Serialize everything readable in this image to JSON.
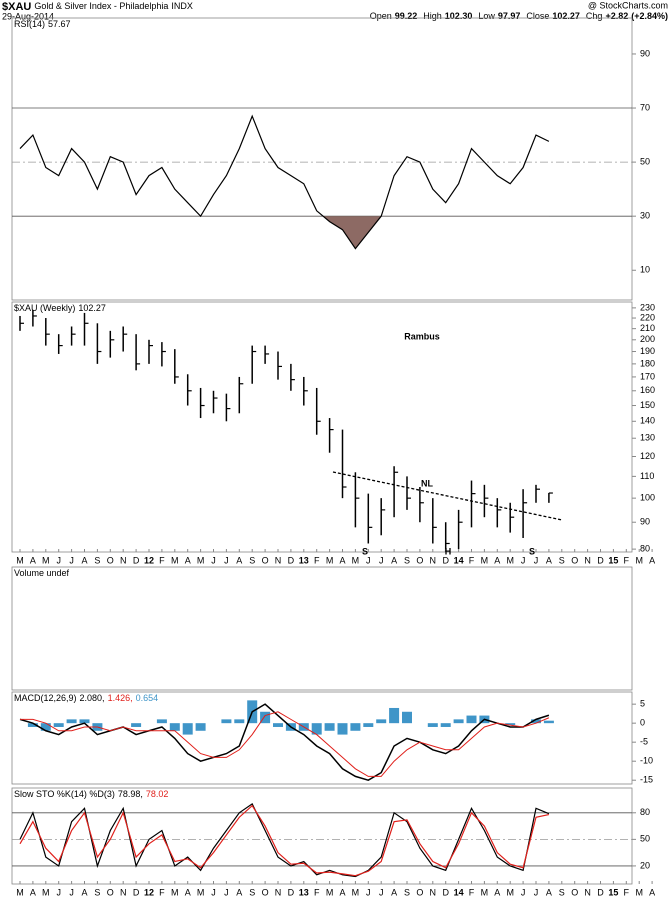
{
  "header": {
    "symbol": "$XAU",
    "name": "Gold & Silver Index - Philadelphia",
    "exchange": "INDX",
    "date": "29-Aug-2014",
    "brand": "@ StockCharts.com",
    "quote": [
      {
        "label": "Open",
        "value": 99.22
      },
      {
        "label": "High",
        "value": 102.3,
        "value_label": "102.30"
      },
      {
        "label": "Low",
        "value": 97.97
      },
      {
        "label": "Close",
        "value": 102.27
      },
      {
        "label": "Chg",
        "value": 2.82,
        "value_label": "+2.82"
      },
      {
        "label": "",
        "value": 2.84,
        "value_label": "(+2.84%)"
      }
    ]
  },
  "chart_data": [
    {
      "type": "line",
      "label": "RSI(14)",
      "last": [
        57.67
      ],
      "ylim": [
        -1,
        103.3
      ],
      "yticks": [
        10,
        30,
        50,
        70,
        90
      ],
      "reference_lines": [
        30,
        50,
        70
      ],
      "fill_below_color": "#8d6a64",
      "series": [
        {
          "color": "#000000",
          "values": [
            55,
            60,
            48,
            45,
            55,
            50,
            40,
            52,
            50,
            38,
            45,
            48,
            40,
            35,
            30,
            38,
            45,
            55,
            67,
            55,
            48,
            45,
            42,
            32,
            28,
            25,
            18,
            24,
            30,
            45,
            52,
            50,
            40,
            35,
            42,
            55,
            50,
            45,
            42,
            48,
            60,
            57.67,
            null,
            null,
            null,
            null,
            null,
            null,
            null,
            null
          ]
        }
      ]
    },
    {
      "type": "hlc",
      "label": "$XAU (Weekly)",
      "last": [
        102.27
      ],
      "log_scale": true,
      "ylim": [
        79,
        236
      ],
      "yticks": [
        80,
        90,
        100,
        110,
        120,
        130,
        140,
        150,
        160,
        170,
        180,
        190,
        200,
        210,
        220,
        230
      ],
      "color": "#000000",
      "annotations": [
        "Rambus",
        "NL",
        "S",
        "H",
        "S"
      ],
      "categories": [
        "M",
        "A",
        "M",
        "J",
        "J",
        "A",
        "S",
        "O",
        "N",
        "D",
        "12",
        "F",
        "M",
        "A",
        "M",
        "J",
        "J",
        "A",
        "S",
        "O",
        "N",
        "D",
        "13",
        "F",
        "M",
        "A",
        "M",
        "J",
        "J",
        "A",
        "S",
        "O",
        "N",
        "D",
        "14",
        "F",
        "M",
        "A",
        "M",
        "J",
        "J",
        "A",
        "S",
        "O",
        "N",
        "D",
        "15",
        "F",
        "M",
        "A"
      ],
      "high": [
        222,
        228,
        220,
        205,
        212,
        225,
        215,
        208,
        212,
        205,
        200,
        198,
        192,
        172,
        162,
        160,
        158,
        170,
        195,
        195,
        190,
        180,
        170,
        162,
        142,
        135,
        112,
        102,
        100,
        115,
        110,
        105,
        100,
        90,
        95,
        108,
        106,
        100,
        98,
        104,
        106,
        102.3,
        null,
        null,
        null,
        null,
        null,
        null,
        null,
        null
      ],
      "low": [
        208,
        212,
        195,
        188,
        195,
        195,
        180,
        185,
        190,
        175,
        180,
        178,
        165,
        150,
        142,
        145,
        140,
        145,
        165,
        180,
        168,
        160,
        150,
        132,
        122,
        100,
        88,
        82,
        85,
        92,
        95,
        90,
        82,
        79,
        80,
        88,
        92,
        88,
        86,
        84,
        98,
        97.97,
        null,
        null,
        null,
        null,
        null,
        null,
        null,
        null
      ],
      "close": [
        215,
        222,
        205,
        195,
        205,
        215,
        190,
        200,
        205,
        180,
        195,
        190,
        170,
        160,
        150,
        155,
        148,
        165,
        190,
        188,
        178,
        168,
        160,
        140,
        135,
        105,
        100,
        88,
        95,
        112,
        100,
        98,
        88,
        82,
        90,
        102,
        100,
        95,
        92,
        98,
        104,
        102.27,
        null,
        null,
        null,
        null,
        null,
        null,
        null,
        null
      ]
    },
    {
      "type": "bar",
      "label": "Volume undef"
    },
    {
      "type": "macd",
      "label": "MACD(12,26,9)",
      "last": [
        {
          "value": 2.08,
          "label": "2.080,"
        },
        {
          "value": 1.426,
          "label": "1.426,"
        },
        0.654
      ],
      "ylim": [
        -16,
        8.2
      ],
      "yticks": [
        5,
        0,
        -5,
        -10,
        -15
      ],
      "histogram": {
        "color": "#3f95c8",
        "values": [
          0,
          -1,
          -2,
          -1,
          1,
          1,
          -2,
          0,
          0,
          -1,
          0,
          1,
          -2,
          -3,
          -2,
          0,
          1,
          1,
          6,
          3,
          -1,
          -2,
          -2,
          -3,
          -2,
          -3,
          -2,
          -1,
          1,
          4,
          3,
          0,
          -1,
          -1,
          1,
          2,
          2,
          0,
          -0.5,
          0,
          1,
          0.654,
          null,
          null,
          null,
          null,
          null,
          null,
          null,
          null
        ]
      },
      "series": [
        {
          "color": "#000000",
          "values": [
            1,
            0,
            -2,
            -3,
            -1,
            0,
            -3,
            -2,
            -1,
            -3,
            -2,
            -1,
            -4,
            -8,
            -10,
            -9,
            -8,
            -6,
            3,
            5,
            2,
            -1,
            -3,
            -6,
            -8,
            -12,
            -14,
            -15,
            -13,
            -6,
            -4,
            -5,
            -7,
            -8,
            -6,
            -2,
            1,
            0,
            -1,
            -1,
            1,
            2.08,
            null,
            null,
            null,
            null,
            null,
            null,
            null,
            null
          ]
        },
        {
          "color": "#e0201b",
          "values": [
            1,
            1,
            0,
            -2,
            -2,
            -1,
            -1,
            -2,
            -1,
            -2,
            -2,
            -2,
            -2,
            -5,
            -8,
            -9,
            -9,
            -7,
            -3,
            2,
            3,
            1,
            -1,
            -3,
            -6,
            -9,
            -12,
            -14,
            -14,
            -10,
            -7,
            -5,
            -6,
            -7,
            -7,
            -4,
            -1,
            0,
            -0.5,
            -1,
            0,
            1.426,
            null,
            null,
            null,
            null,
            null,
            null,
            null,
            null
          ]
        }
      ]
    },
    {
      "type": "line",
      "label": "Slow STO %K(14) %D(3)",
      "last": [
        {
          "value": 78.98,
          "label": "78.98,"
        },
        78.02
      ],
      "ylim": [
        -0.4,
        108
      ],
      "yticks": [
        20,
        50,
        80
      ],
      "reference_lines": [
        20,
        50,
        80
      ],
      "categories": [
        "M",
        "A",
        "M",
        "J",
        "J",
        "A",
        "S",
        "O",
        "N",
        "D",
        "12",
        "F",
        "M",
        "A",
        "M",
        "J",
        "J",
        "A",
        "S",
        "O",
        "N",
        "D",
        "13",
        "F",
        "M",
        "A",
        "M",
        "J",
        "J",
        "A",
        "S",
        "O",
        "N",
        "D",
        "14",
        "F",
        "M",
        "A",
        "M",
        "J",
        "J",
        "A",
        "S",
        "O",
        "N",
        "D",
        "15",
        "F",
        "M",
        "A"
      ],
      "series": [
        {
          "color": "#000000",
          "values": [
            50,
            80,
            30,
            20,
            70,
            85,
            20,
            60,
            85,
            20,
            50,
            60,
            20,
            30,
            15,
            40,
            60,
            80,
            90,
            60,
            30,
            20,
            25,
            10,
            15,
            10,
            8,
            15,
            30,
            80,
            70,
            40,
            20,
            15,
            50,
            85,
            60,
            30,
            20,
            15,
            85,
            78.98,
            null,
            null,
            null,
            null,
            null,
            null,
            null,
            null
          ]
        },
        {
          "color": "#e0201b",
          "values": [
            45,
            70,
            40,
            25,
            60,
            80,
            30,
            50,
            80,
            30,
            45,
            55,
            25,
            28,
            18,
            35,
            55,
            75,
            88,
            65,
            35,
            22,
            23,
            12,
            13,
            11,
            9,
            14,
            25,
            70,
            72,
            45,
            25,
            18,
            45,
            80,
            65,
            35,
            22,
            18,
            75,
            78.02,
            null,
            null,
            null,
            null,
            null,
            null,
            null,
            null
          ]
        }
      ]
    }
  ]
}
